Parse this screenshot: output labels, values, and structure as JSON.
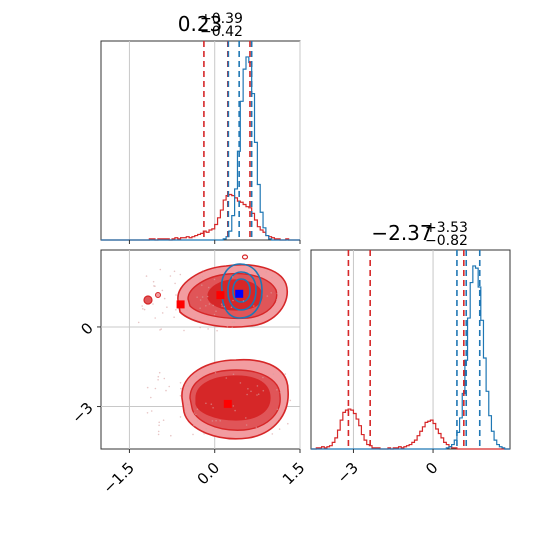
{
  "chart_data": {
    "type": "corner",
    "parameters": [
      {
        "title": {
          "median": "0.23",
          "plus": "+0.39",
          "minus": "−0.42"
        },
        "axis_range": [
          -2.0,
          1.5
        ],
        "ticks": [
          {
            "value": -1.5,
            "label": "−1.5"
          },
          {
            "value": 0.0,
            "label": "0.0"
          },
          {
            "value": 1.5,
            "label": "1.5"
          }
        ]
      },
      {
        "title": {
          "median": "−2.37",
          "plus": "+3.53",
          "minus": "−0.82"
        },
        "axis_range": [
          -4.6,
          2.9
        ],
        "ticks": [
          {
            "value": -3,
            "label": "−3"
          },
          {
            "value": 0,
            "label": "0"
          }
        ]
      }
    ],
    "series": [
      {
        "color": "#d62728",
        "fill_colors": [
          "#f29ca0",
          "#e05558",
          "#d62728"
        ],
        "quantile_lines": {
          "param1": [
            -0.19,
            0.23,
            0.62
          ],
          "param2": [
            -3.19,
            -2.37,
            1.16
          ]
        },
        "hist1_bins": [
          -2.0,
          1.5,
          70
        ],
        "hist1": [
          0,
          0,
          0,
          0,
          0,
          0,
          0,
          0,
          0,
          0,
          0,
          0,
          0,
          0,
          0,
          0,
          0,
          1,
          1,
          0,
          1,
          1,
          1,
          1,
          0,
          1,
          2,
          1,
          2,
          2,
          3,
          2,
          3,
          4,
          5,
          6,
          8,
          7,
          9,
          10,
          14,
          20,
          27,
          36,
          40,
          41,
          40,
          38,
          35,
          34,
          32,
          30,
          29,
          24,
          18,
          12,
          9,
          7,
          4,
          3,
          2,
          1,
          1,
          0,
          0,
          1,
          0,
          0,
          0,
          0
        ],
        "hist2_bins": [
          -4.6,
          2.9,
          75
        ],
        "hist2": [
          0,
          0,
          1,
          1,
          2,
          1,
          2,
          3,
          6,
          10,
          17,
          26,
          33,
          35,
          36,
          35,
          32,
          27,
          21,
          13,
          8,
          4,
          3,
          1,
          1,
          1,
          0,
          0,
          0,
          1,
          0,
          1,
          1,
          2,
          1,
          2,
          3,
          4,
          6,
          8,
          12,
          16,
          20,
          24,
          25,
          26,
          23,
          18,
          14,
          10,
          6,
          4,
          2,
          1,
          1,
          0,
          0,
          0,
          0,
          0,
          0,
          0,
          0,
          0,
          0,
          0,
          0,
          0,
          0,
          0,
          0,
          0,
          0,
          0,
          0
        ],
        "points": [
          [
            -0.6,
            0.85
          ],
          [
            0.1,
            1.2
          ],
          [
            0.23,
            -2.9
          ]
        ]
      },
      {
        "color": "#1f77b4",
        "quantile_lines": {
          "param1": [
            0.24,
            0.43,
            0.65
          ],
          "param2": [
            0.9,
            1.25,
            1.76
          ]
        },
        "hist1_bins": [
          -2.0,
          1.5,
          70
        ],
        "hist1": [
          0,
          0,
          0,
          0,
          0,
          0,
          0,
          0,
          0,
          0,
          0,
          0,
          0,
          0,
          0,
          0,
          0,
          0,
          0,
          0,
          0,
          0,
          0,
          0,
          0,
          0,
          0,
          0,
          0,
          0,
          0,
          0,
          0,
          0,
          0,
          0,
          0,
          0,
          0,
          0,
          0,
          0,
          0,
          1,
          3,
          8,
          22,
          46,
          80,
          125,
          154,
          165,
          160,
          132,
          88,
          50,
          25,
          11,
          4,
          1,
          0,
          0,
          0,
          0,
          0,
          0,
          0,
          0,
          0,
          0
        ],
        "hist2_bins": [
          -4.6,
          2.9,
          75
        ],
        "hist2": [
          0,
          0,
          0,
          0,
          0,
          0,
          0,
          0,
          0,
          0,
          0,
          0,
          0,
          0,
          0,
          0,
          0,
          0,
          0,
          0,
          0,
          0,
          0,
          0,
          0,
          0,
          0,
          0,
          0,
          0,
          0,
          0,
          0,
          0,
          0,
          0,
          0,
          0,
          0,
          0,
          0,
          0,
          0,
          0,
          0,
          0,
          0,
          0,
          0,
          0,
          0,
          1,
          2,
          4,
          8,
          15,
          28,
          50,
          80,
          118,
          150,
          165,
          163,
          146,
          116,
          82,
          52,
          30,
          16,
          8,
          4,
          2,
          1,
          0,
          0
        ],
        "points": [
          [
            0.43,
            1.25
          ]
        ]
      }
    ],
    "grid": true
  }
}
